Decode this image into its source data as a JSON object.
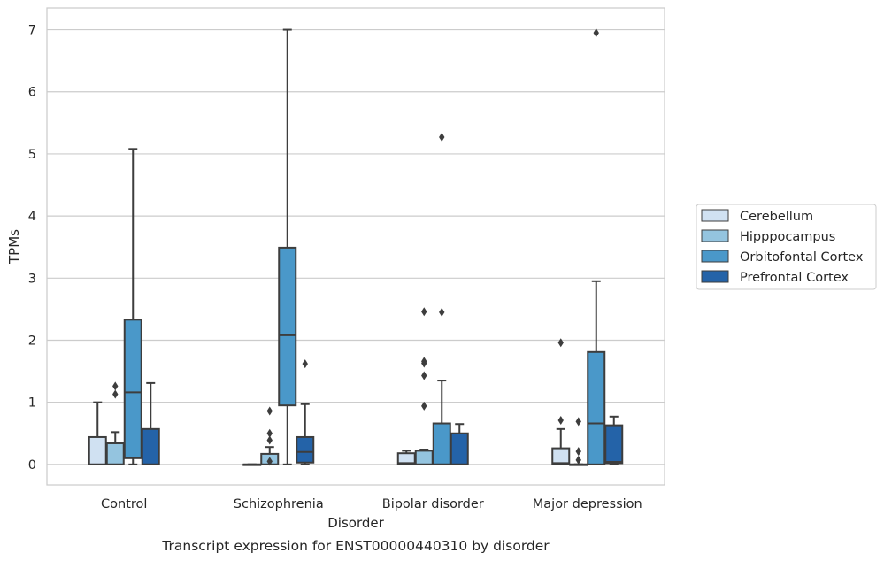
{
  "chart_data": {
    "type": "box",
    "title": "",
    "caption": "Transcript expression for ENST00000440310 by disorder",
    "xlabel": "Disorder",
    "ylabel": "TPMs",
    "ylim": [
      -0.33,
      7.35
    ],
    "yticks": [
      0,
      1,
      2,
      3,
      4,
      5,
      6,
      7
    ],
    "grid": "horizontal",
    "legend_placement": "right",
    "categories": [
      "Control",
      "Schizophrenia",
      "Bipolar disorder",
      "Major depression"
    ],
    "series": [
      {
        "name": "Cerebellum",
        "color": "#d0e1f2",
        "boxes": [
          {
            "whisker_low": 0,
            "q1": 0,
            "median": 0,
            "q3": 0.44,
            "whisker_high": 1.0,
            "outliers": []
          },
          {
            "whisker_low": 0,
            "q1": 0,
            "median": 0,
            "q3": 0,
            "whisker_high": 0,
            "outliers": []
          },
          {
            "whisker_low": 0,
            "q1": 0,
            "median": 0.02,
            "q3": 0.18,
            "whisker_high": 0.22,
            "outliers": []
          },
          {
            "whisker_low": 0,
            "q1": 0,
            "median": 0.02,
            "q3": 0.26,
            "whisker_high": 0.57,
            "outliers": [
              0.71,
              1.96
            ]
          }
        ]
      },
      {
        "name": "Hipppocampus",
        "color": "#94c4df",
        "boxes": [
          {
            "whisker_low": 0,
            "q1": 0,
            "median": 0,
            "q3": 0.34,
            "whisker_high": 0.52,
            "outliers": [
              1.13,
              1.26
            ]
          },
          {
            "whisker_low": 0,
            "q1": 0,
            "median": 0,
            "q3": 0.17,
            "whisker_high": 0.28,
            "outliers": [
              0.05,
              0.39,
              0.5,
              0.86
            ]
          },
          {
            "whisker_low": 0,
            "q1": 0,
            "median": 0,
            "q3": 0.22,
            "whisker_high": 0.24,
            "outliers": [
              1.43,
              1.63,
              0.94,
              1.66,
              2.46
            ]
          },
          {
            "whisker_low": 0,
            "q1": 0,
            "median": 0,
            "q3": 0,
            "whisker_high": 0,
            "outliers": [
              0.07,
              0.21,
              0.69
            ]
          }
        ]
      },
      {
        "name": "Orbitofontal Cortex",
        "color": "#4a98c9",
        "boxes": [
          {
            "whisker_low": 0,
            "q1": 0.1,
            "median": 1.16,
            "q3": 2.33,
            "whisker_high": 5.08,
            "outliers": []
          },
          {
            "whisker_low": 0,
            "q1": 0.95,
            "median": 2.08,
            "q3": 3.49,
            "whisker_high": 7.0,
            "outliers": []
          },
          {
            "whisker_low": 0,
            "q1": 0,
            "median": 0,
            "q3": 0.66,
            "whisker_high": 1.35,
            "outliers": [
              2.45,
              5.27
            ]
          },
          {
            "whisker_low": 0,
            "q1": 0,
            "median": 0.66,
            "q3": 1.81,
            "whisker_high": 2.95,
            "outliers": [
              6.95
            ]
          }
        ]
      },
      {
        "name": "Prefrontal Cortex",
        "color": "#2463a8",
        "boxes": [
          {
            "whisker_low": 0,
            "q1": 0,
            "median": 0,
            "q3": 0.57,
            "whisker_high": 1.31,
            "outliers": []
          },
          {
            "whisker_low": 0,
            "q1": 0.03,
            "median": 0.2,
            "q3": 0.44,
            "whisker_high": 0.97,
            "outliers": [
              1.62
            ]
          },
          {
            "whisker_low": 0,
            "q1": 0,
            "median": 0,
            "q3": 0.5,
            "whisker_high": 0.65,
            "outliers": []
          },
          {
            "whisker_low": 0,
            "q1": 0.02,
            "median": 0.04,
            "q3": 0.63,
            "whisker_high": 0.77,
            "outliers": []
          }
        ]
      }
    ]
  }
}
